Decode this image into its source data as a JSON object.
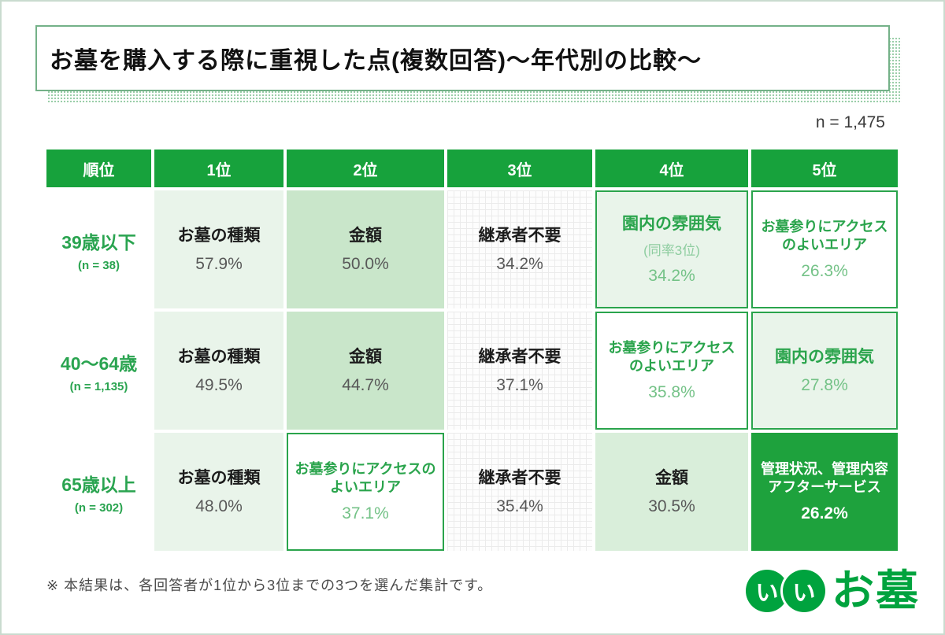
{
  "header": {
    "title": "お墓を購入する際に重視した点(複数回答)〜年代別の比較〜",
    "sample_size": "n = 1,475"
  },
  "table": {
    "columns": [
      "順位",
      "1位",
      "2位",
      "3位",
      "4位",
      "5位"
    ],
    "rows": [
      {
        "age": "39歳以下",
        "n": "(n = 38)",
        "cells": [
          {
            "label": "お墓の種類",
            "pct": "57.9%"
          },
          {
            "label": "金額",
            "pct": "50.0%"
          },
          {
            "label": "継承者不要",
            "pct": "34.2%"
          },
          {
            "label": "園内の雰囲気",
            "note": "(同率3位)",
            "pct": "34.2%"
          },
          {
            "label": "お墓参りにアクセス\nのよいエリア",
            "pct": "26.3%"
          }
        ]
      },
      {
        "age": "40〜64歳",
        "n": "(n = 1,135)",
        "cells": [
          {
            "label": "お墓の種類",
            "pct": "49.5%"
          },
          {
            "label": "金額",
            "pct": "44.7%"
          },
          {
            "label": "継承者不要",
            "pct": "37.1%"
          },
          {
            "label": "お墓参りにアクセス\nのよいエリア",
            "pct": "35.8%"
          },
          {
            "label": "園内の雰囲気",
            "pct": "27.8%"
          }
        ]
      },
      {
        "age": "65歳以上",
        "n": "(n = 302)",
        "cells": [
          {
            "label": "お墓の種類",
            "pct": "48.0%"
          },
          {
            "label": "お墓参りにアクセスの\nよいエリア",
            "pct": "37.1%"
          },
          {
            "label": "継承者不要",
            "pct": "35.4%"
          },
          {
            "label": "金額",
            "pct": "30.5%"
          },
          {
            "label": "管理状況、管理内容\nアフターサービス",
            "pct": "26.2%"
          }
        ]
      }
    ]
  },
  "footer": {
    "note": "※ 本結果は、各回答者が1位から3位までの3つを選んだ集計です。",
    "logo": {
      "circle1": "い",
      "circle2": "い",
      "text": "お墓"
    }
  },
  "colors": {
    "header_green": "#17a23c",
    "solid_cell_green": "#1ea23d",
    "outline_green": "#2aa44c",
    "pale_green_bg": "#e9f4ea",
    "mid_green_bg": "#c9e6ca",
    "green_text": "#2aa44c",
    "light_green_text": "#74c287",
    "logo_green": "#00a33e"
  },
  "chart_data": {
    "type": "table",
    "title": "お墓を購入する際に重視した点(複数回答)〜年代別の比較〜",
    "total_n": 1475,
    "columns": [
      "順位",
      "1位",
      "2位",
      "3位",
      "4位",
      "5位"
    ],
    "groups": [
      {
        "group": "39歳以下",
        "n": 38,
        "ranking": [
          {
            "rank": 1,
            "item": "お墓の種類",
            "percent": 57.9
          },
          {
            "rank": 2,
            "item": "金額",
            "percent": 50.0
          },
          {
            "rank": 3,
            "item": "継承者不要",
            "percent": 34.2
          },
          {
            "rank": 4,
            "item": "園内の雰囲気",
            "percent": 34.2,
            "note": "同率3位"
          },
          {
            "rank": 5,
            "item": "お墓参りにアクセスのよいエリア",
            "percent": 26.3
          }
        ]
      },
      {
        "group": "40〜64歳",
        "n": 1135,
        "ranking": [
          {
            "rank": 1,
            "item": "お墓の種類",
            "percent": 49.5
          },
          {
            "rank": 2,
            "item": "金額",
            "percent": 44.7
          },
          {
            "rank": 3,
            "item": "継承者不要",
            "percent": 37.1
          },
          {
            "rank": 4,
            "item": "お墓参りにアクセスのよいエリア",
            "percent": 35.8
          },
          {
            "rank": 5,
            "item": "園内の雰囲気",
            "percent": 27.8
          }
        ]
      },
      {
        "group": "65歳以上",
        "n": 302,
        "ranking": [
          {
            "rank": 1,
            "item": "お墓の種類",
            "percent": 48.0
          },
          {
            "rank": 2,
            "item": "お墓参りにアクセスのよいエリア",
            "percent": 37.1
          },
          {
            "rank": 3,
            "item": "継承者不要",
            "percent": 35.4
          },
          {
            "rank": 4,
            "item": "金額",
            "percent": 30.5
          },
          {
            "rank": 5,
            "item": "管理状況、管理内容アフターサービス",
            "percent": 26.2
          }
        ]
      }
    ],
    "note": "※ 本結果は、各回答者が1位から3位までの3つを選んだ集計です。"
  }
}
